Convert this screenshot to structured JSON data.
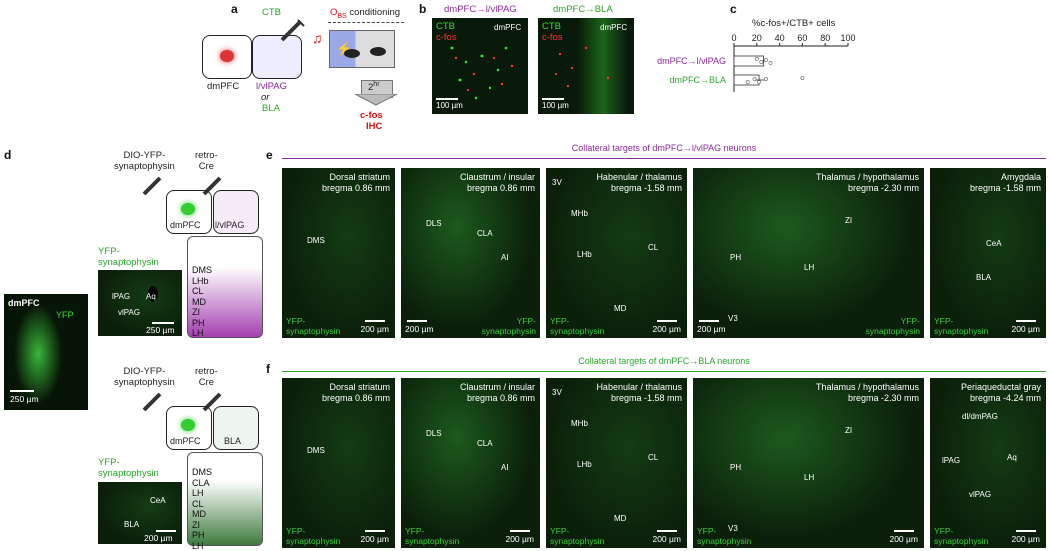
{
  "panel_labels": {
    "a": "a",
    "b": "b",
    "c": "c",
    "d": "d",
    "e": "e",
    "f": "f"
  },
  "a": {
    "cell_left": "dmPFC",
    "target_l1": "l/vlPAG",
    "target_or": "or",
    "target_l2": "BLA",
    "tracer": "CTB",
    "cond_title": "O",
    "cond_sub": "BS",
    "cond_suffix": " conditioning",
    "delay": "2",
    "delay_sup": "hr",
    "readout1": "c-fos",
    "readout2": "IHC"
  },
  "b": {
    "img1_title": "dmPFC→l/vlPAG",
    "img2_title": "dmPFC→BLA",
    "ctb": "CTB",
    "cfos": "c-fos",
    "region": "dmPFC",
    "scale": "100 µm"
  },
  "c": {
    "xlabel": "%c-fos+/CTB+ cells",
    "ticks": [
      "0",
      "20",
      "40",
      "60",
      "80",
      "100"
    ],
    "row1": "dmPFC→l/vlPAG",
    "row2": "dmPFC→BLA"
  },
  "chart_data": {
    "type": "bar",
    "categories": [
      "dmPFC→l/vlPAG",
      "dmPFC→BLA"
    ],
    "values": [
      26,
      22
    ],
    "errors": [
      3,
      5
    ],
    "points": [
      [
        20,
        24,
        28,
        32
      ],
      [
        12,
        18,
        22,
        28,
        60
      ]
    ],
    "orientation": "horizontal",
    "xlabel": "%c-fos+/CTB+ cells",
    "xlim": [
      0,
      100
    ]
  },
  "d": {
    "virus1": "DIO-YFP-",
    "virus2": "synaptophysin",
    "retro1": "retro-",
    "retro2": "Cre",
    "src": "dmPFC",
    "tgt1": "l/vlPAG",
    "tgt2": "BLA",
    "yfp1": "YFP-",
    "yfp2": "synaptophysin",
    "img_top": {
      "s1": "lPAG",
      "s2": "Aq",
      "s3": "vlPAG",
      "scale": "250 µm"
    },
    "img_bot": {
      "s1": "CeA",
      "s2": "BLA",
      "scale": "200 µm"
    },
    "list_top": [
      "DMS",
      "LHb",
      "CL",
      "MD",
      "ZI",
      "PH",
      "LH"
    ],
    "list_bot": [
      "DMS",
      "CLA",
      "LH",
      "CL",
      "MD",
      "ZI",
      "PH",
      "LH"
    ],
    "side_img": {
      "t1": "dmPFC",
      "t2": "YFP",
      "scale": "250 µm"
    }
  },
  "e": {
    "header": "Collateral targets of dmPFC→l/vlPAG neurons",
    "panels": [
      {
        "title1": "Dorsal striatum",
        "title2": "bregma 0.86 mm",
        "structs": [
          "DMS"
        ],
        "scale": "200 µm",
        "yfp_right": false
      },
      {
        "title1": "Claustrum / insular",
        "title2": "bregma 0.86 mm",
        "structs": [
          "DLS",
          "CLA",
          "AI"
        ],
        "scale": "200 µm",
        "yfp_right": true
      },
      {
        "title1": "Habenular / thalamus",
        "title2": "bregma -1.58 mm",
        "structs": [
          "3V",
          "MHb",
          "LHb",
          "CL",
          "MD"
        ],
        "scale": "200 µm",
        "yfp_right": false
      },
      {
        "title1": "Thalamus / hypothalamus",
        "title2": "bregma -2.30 mm",
        "structs": [
          "ZI",
          "PH",
          "LH",
          "V3"
        ],
        "scale": "200 µm",
        "yfp_right": true
      },
      {
        "title1": "Amygdala",
        "title2": "bregma -1.58 mm",
        "structs": [
          "CeA",
          "BLA"
        ],
        "scale": "200 µm",
        "yfp_right": false
      }
    ]
  },
  "f": {
    "header": "Collateral targets of dmPFC→BLA neurons",
    "panels": [
      {
        "title1": "Dorsal striatum",
        "title2": "bregma 0.86 mm",
        "structs": [
          "DMS"
        ],
        "scale": "200 µm"
      },
      {
        "title1": "Claustrum / insular",
        "title2": "bregma 0.86 mm",
        "structs": [
          "DLS",
          "CLA",
          "AI"
        ],
        "scale": "200 µm"
      },
      {
        "title1": "Habenular / thalamus",
        "title2": "bregma -1.58 mm",
        "structs": [
          "3V",
          "MHb",
          "LHb",
          "CL",
          "MD"
        ],
        "scale": "200 µm"
      },
      {
        "title1": "Thalamus / hypothalamus",
        "title2": "bregma -2.30 mm",
        "structs": [
          "ZI",
          "PH",
          "LH",
          "V3"
        ],
        "scale": "200 µm"
      },
      {
        "title1": "Periaqueductal gray",
        "title2": "bregma -4.24 mm",
        "structs": [
          "dl/dmPAG",
          "lPAG",
          "Aq",
          "vlPAG"
        ],
        "scale": "200 µm"
      }
    ]
  },
  "yfp_label": {
    "l1": "YFP-",
    "l2": "synaptophysin"
  },
  "colors": {
    "purple": "#8a2a9a",
    "green": "#2aa52a",
    "red": "#d11111"
  }
}
